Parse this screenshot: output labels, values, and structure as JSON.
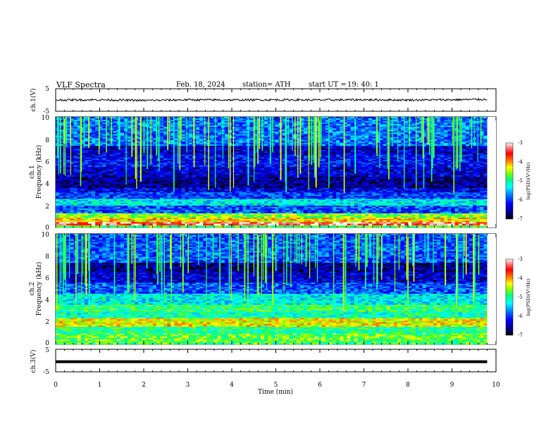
{
  "header": {
    "title": "VLF  Spectra",
    "date": "Feb. 18, 2024",
    "station": "station= ATH",
    "start_label": "start  UT  =",
    "start_time": "19: 40: 1"
  },
  "colors": {
    "waveform": "#000000",
    "spectrogram_background": "#000066",
    "colormap": [
      "#000000",
      "#00007f",
      "#0000ff",
      "#0080ff",
      "#00ffff",
      "#00ff80",
      "#80ff00",
      "#ffff00",
      "#ff8000",
      "#ff0000",
      "#ff8080",
      "#ffffff"
    ]
  },
  "chart_data": [
    {
      "type": "line",
      "panel": "ch1-waveform",
      "ylabel": "ch.1(V)",
      "ylim": [
        -5,
        5
      ],
      "y_ticks": [
        "5",
        "-5"
      ],
      "xlim": [
        0,
        10
      ],
      "description_note": "",
      "x": [
        0,
        1,
        2,
        3,
        4,
        5,
        6,
        7,
        8,
        9,
        9.8
      ],
      "values": [
        0,
        0.1,
        -0.2,
        0.1,
        0,
        0.1,
        0,
        0.1,
        0,
        0.1,
        0.3
      ]
    },
    {
      "type": "heatmap",
      "panel": "ch1-spectrogram",
      "ylabel": "ch.1\nFrequency (kHz)",
      "ylabel_line1": "ch.1",
      "ylabel_line2": "Frequency  (kHz)",
      "ylim": [
        0,
        10
      ],
      "y_ticks": [
        "0",
        "2",
        "4",
        "6",
        "8",
        "10"
      ],
      "xlim": [
        0,
        10
      ],
      "data_end_min": 9.8,
      "colorbar": {
        "label": "log(PSD)(V²/Hz)",
        "range": [
          -7,
          -3
        ],
        "ticks": [
          "-3",
          "-4",
          "-5",
          "-6",
          "-7"
        ]
      },
      "bands": [
        {
          "f": [
            0.0,
            0.2
          ],
          "level": -4.8
        },
        {
          "f": [
            0.2,
            0.5
          ],
          "level": -3.3
        },
        {
          "f": [
            0.5,
            0.9
          ],
          "level": -4.2
        },
        {
          "f": [
            0.9,
            1.3
          ],
          "level": -4.6
        },
        {
          "f": [
            1.3,
            2.0
          ],
          "level": -5.9
        },
        {
          "f": [
            2.0,
            2.6
          ],
          "level": -5.3
        },
        {
          "f": [
            2.6,
            3.2
          ],
          "level": -6.0
        },
        {
          "f": [
            3.2,
            3.6
          ],
          "level": -6.3
        },
        {
          "f": [
            3.6,
            4.6
          ],
          "level": -6.6
        },
        {
          "f": [
            4.6,
            5.5
          ],
          "level": -6.4
        },
        {
          "f": [
            5.5,
            6.6
          ],
          "level": -6.2
        },
        {
          "f": [
            6.6,
            7.4
          ],
          "level": -6.4
        },
        {
          "f": [
            7.4,
            10.0
          ],
          "level": -5.8
        }
      ]
    },
    {
      "type": "heatmap",
      "panel": "ch2-spectrogram",
      "ylabel_line1": "ch.2",
      "ylabel_line2": "Frequency  (kHz)",
      "ylim": [
        0,
        10
      ],
      "y_ticks": [
        "0",
        "2",
        "4",
        "6",
        "8",
        "10"
      ],
      "xlim": [
        0,
        10
      ],
      "data_end_min": 9.8,
      "colorbar": {
        "label": "log(PSD)(V²/Hz)",
        "range": [
          -7,
          -3
        ],
        "ticks": [
          "-3",
          "-4",
          "-5",
          "-6",
          "-7"
        ]
      },
      "bands": [
        {
          "f": [
            0.0,
            0.3
          ],
          "level": -4.8
        },
        {
          "f": [
            0.3,
            1.0
          ],
          "level": -4.7
        },
        {
          "f": [
            1.0,
            1.6
          ],
          "level": -5.0
        },
        {
          "f": [
            1.6,
            2.4
          ],
          "level": -4.3
        },
        {
          "f": [
            2.4,
            3.0
          ],
          "level": -5.1
        },
        {
          "f": [
            3.0,
            3.6
          ],
          "level": -4.9
        },
        {
          "f": [
            3.6,
            4.6
          ],
          "level": -5.3
        },
        {
          "f": [
            4.6,
            5.6
          ],
          "level": -5.9
        },
        {
          "f": [
            5.6,
            6.6
          ],
          "level": -6.4
        },
        {
          "f": [
            6.6,
            7.4
          ],
          "level": -6.6
        },
        {
          "f": [
            7.4,
            10.0
          ],
          "level": -5.9
        }
      ]
    },
    {
      "type": "line",
      "panel": "ch3-waveform",
      "ylabel": "ch.3(V)",
      "ylim": [
        -5,
        5
      ],
      "y_ticks": [
        "5",
        "-5"
      ],
      "xlim": [
        0,
        10
      ],
      "x": [
        0,
        9.8
      ],
      "values": [
        -0.5,
        -0.5
      ]
    }
  ],
  "x_axis": {
    "label": "Time  (min)",
    "ticks": [
      "0",
      "1",
      "2",
      "3",
      "4",
      "5",
      "6",
      "7",
      "8",
      "9",
      "10"
    ]
  }
}
